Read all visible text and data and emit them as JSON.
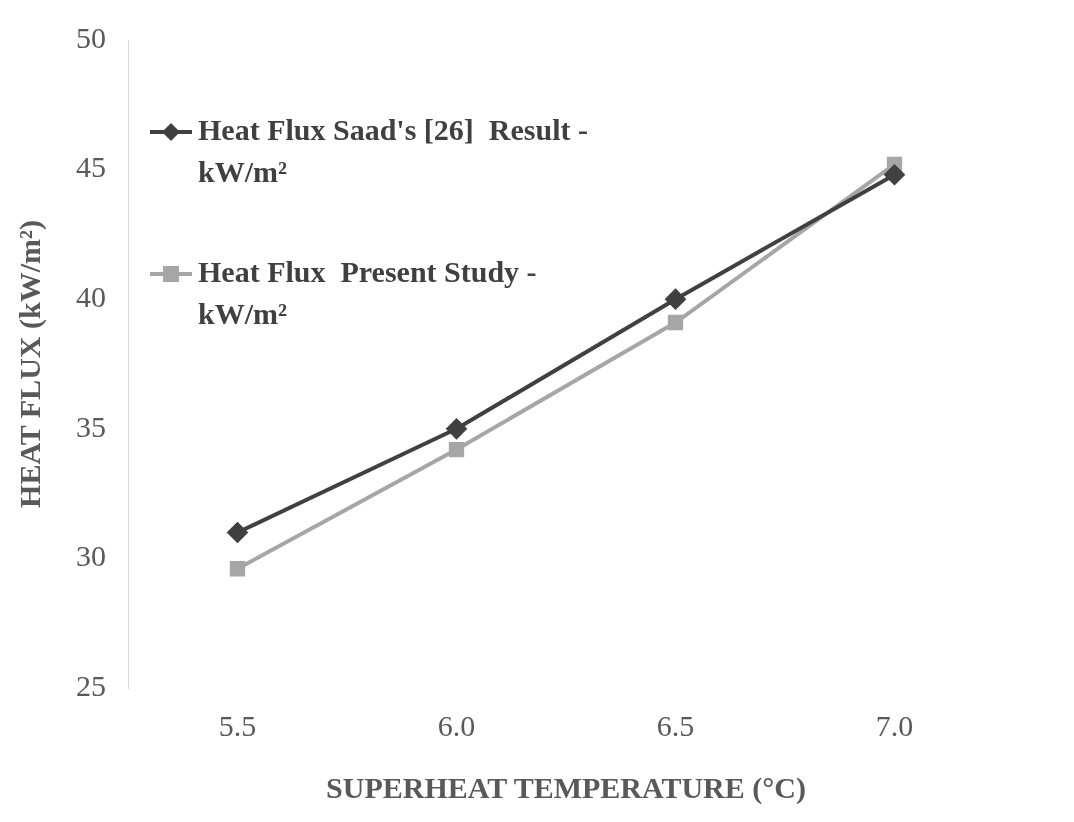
{
  "chart_data": {
    "type": "line",
    "xlabel": "SUPERHEAT TEMPERATURE (°C)",
    "ylabel": "HEAT FLUX (kW/m²)",
    "categories": [
      "5.5",
      "6.0",
      "6.5",
      "7.0"
    ],
    "series": [
      {
        "name": "Heat Flux Saad's [26]  Result - kW/m²",
        "color": "#404040",
        "marker": "diamond",
        "values": [
          31,
          35,
          40,
          44.8
        ]
      },
      {
        "name": "Heat Flux  Present Study -  kW/m²",
        "color": "#a6a6a6",
        "marker": "square",
        "values": [
          29.6,
          34.2,
          39.1,
          45.2
        ]
      }
    ],
    "ylim": [
      25,
      50
    ],
    "yticks": [
      25,
      30,
      35,
      40,
      45,
      50
    ],
    "grid": false,
    "legend": "top left",
    "line_style": "solid"
  }
}
